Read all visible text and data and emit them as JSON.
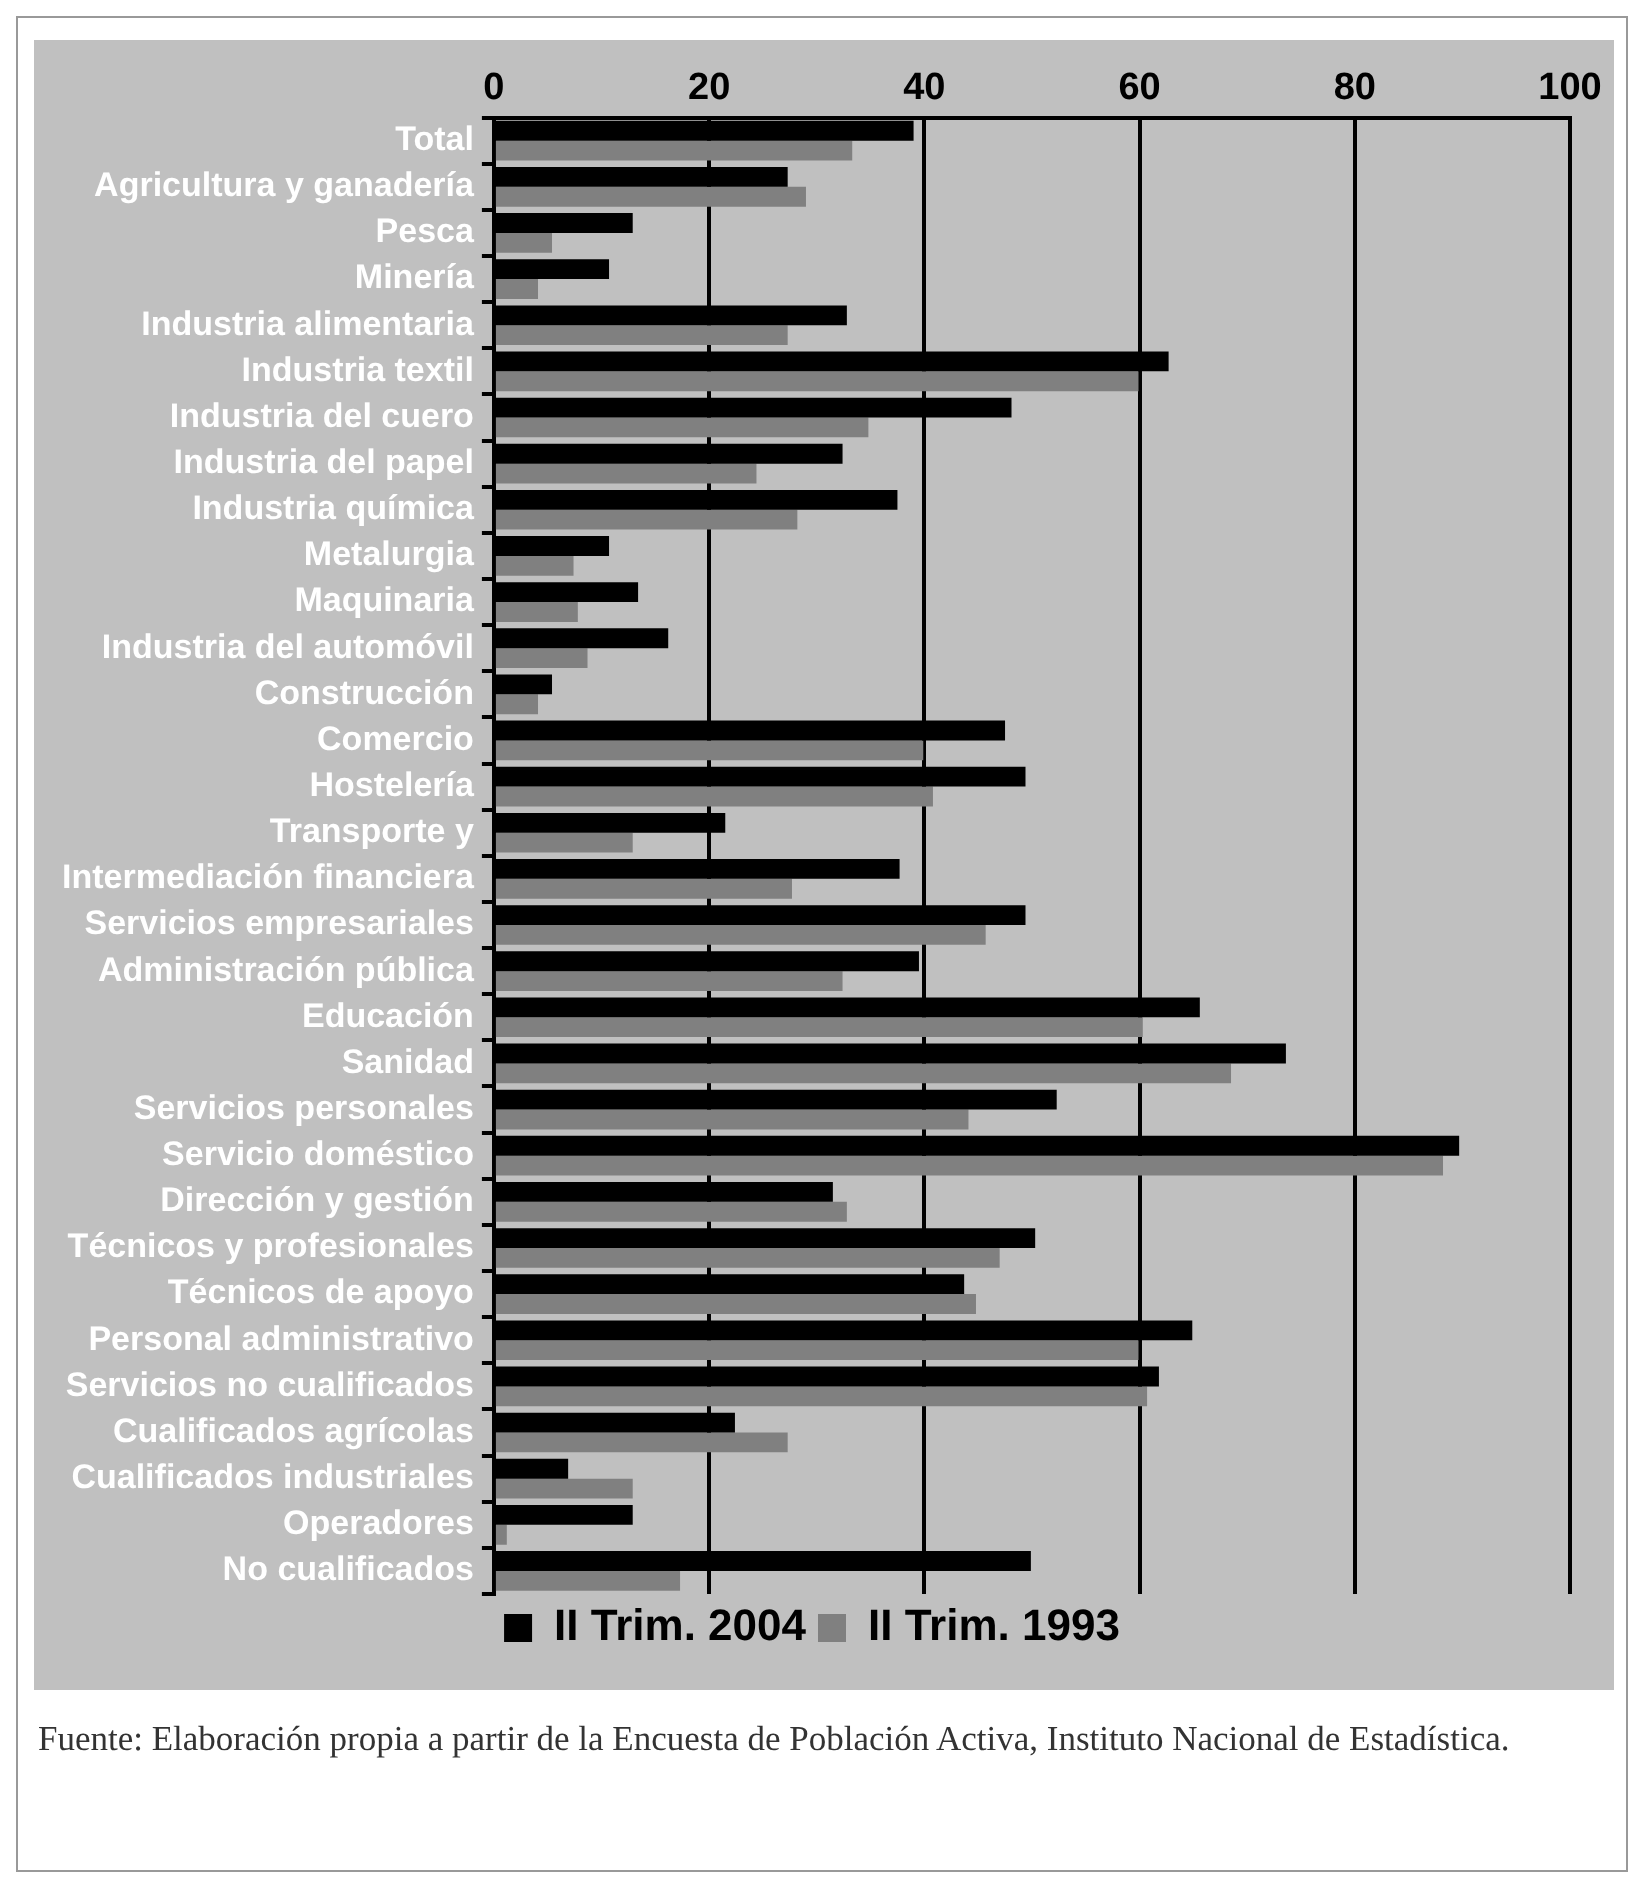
{
  "chart_data": {
    "type": "bar",
    "orientation": "horizontal",
    "categories": [
      "Total",
      "Agricultura y ganadería",
      "Pesca",
      "Minería",
      "Industria alimentaria",
      "Industria textil",
      "Industria del cuero",
      "Industria del papel",
      "Industria química",
      "Metalurgia",
      "Maquinaria",
      "Industria del automóvil",
      "Construcción",
      "Comercio",
      "Hostelería",
      "Transporte y",
      "Intermediación financiera",
      "Servicios empresariales",
      "Administración pública",
      "Educación",
      "Sanidad",
      "Servicios personales",
      "Servicio doméstico",
      "Dirección y gestión",
      "Técnicos y profesionales",
      "Técnicos de apoyo",
      "Personal administrativo",
      "Servicios no cualificados",
      "Cualificados agrícolas",
      "Cualificados industriales",
      "Operadores",
      "No cualificados"
    ],
    "series": [
      {
        "name": "II Trim. 2004",
        "color": "#000000",
        "values": [
          39.0,
          27.3,
          12.9,
          10.7,
          32.8,
          62.7,
          48.1,
          32.4,
          37.5,
          10.7,
          13.4,
          16.2,
          5.4,
          47.5,
          49.4,
          21.5,
          37.7,
          49.4,
          39.5,
          65.6,
          73.6,
          52.3,
          89.7,
          31.5,
          50.3,
          43.7,
          64.9,
          61.8,
          22.4,
          6.9,
          12.9,
          49.9
        ]
      },
      {
        "name": "II Trim. 1993",
        "color": "#808080",
        "values": [
          33.3,
          29.0,
          5.4,
          4.1,
          27.3,
          59.9,
          34.8,
          24.4,
          28.2,
          7.4,
          7.8,
          8.7,
          4.1,
          39.9,
          40.8,
          12.9,
          27.7,
          45.7,
          32.4,
          60.3,
          68.5,
          44.1,
          88.2,
          32.8,
          47.0,
          44.8,
          59.9,
          60.7,
          27.3,
          12.9,
          1.2,
          17.3
        ]
      }
    ],
    "xlim": [
      0,
      100
    ],
    "xticks": [
      0,
      20,
      40,
      60,
      80,
      100
    ],
    "grid": "x",
    "legend": "bottom",
    "annotations": [
      "Fuente: Elaboración propia a partir de la Encuesta de Población Activa, Instituto Nacional de Estadística."
    ]
  }
}
